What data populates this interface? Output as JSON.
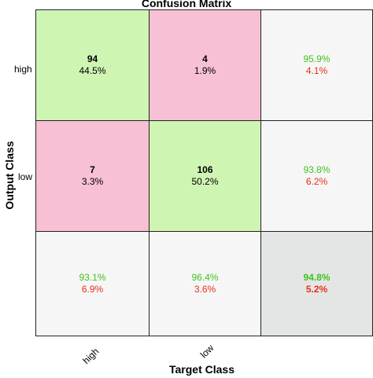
{
  "chart_data": {
    "type": "heatmap",
    "title": "Confusion Matrix",
    "xlabel": "Target Class",
    "ylabel": "Output Class",
    "classes": [
      "high",
      "low"
    ],
    "matrix": [
      [
        {
          "count": "94",
          "pct": "44.5%"
        },
        {
          "count": "4",
          "pct": "1.9%"
        }
      ],
      [
        {
          "count": "7",
          "pct": "3.3%"
        },
        {
          "count": "106",
          "pct": "50.2%"
        }
      ]
    ],
    "row_summary": [
      {
        "correct": "95.9%",
        "wrong": "4.1%"
      },
      {
        "correct": "93.8%",
        "wrong": "6.2%"
      }
    ],
    "col_summary": [
      {
        "correct": "93.1%",
        "wrong": "6.9%"
      },
      {
        "correct": "96.4%",
        "wrong": "3.6%"
      }
    ],
    "overall": {
      "correct": "94.8%",
      "wrong": "5.2%"
    },
    "colors": {
      "correct_bg": "#cff5b3",
      "wrong_bg": "#f8c0d4",
      "summary_bg": "#f6f6f6",
      "overall_bg": "#e4e6e6",
      "green_text": "#3fc31a",
      "red_text": "#e5301c"
    }
  }
}
